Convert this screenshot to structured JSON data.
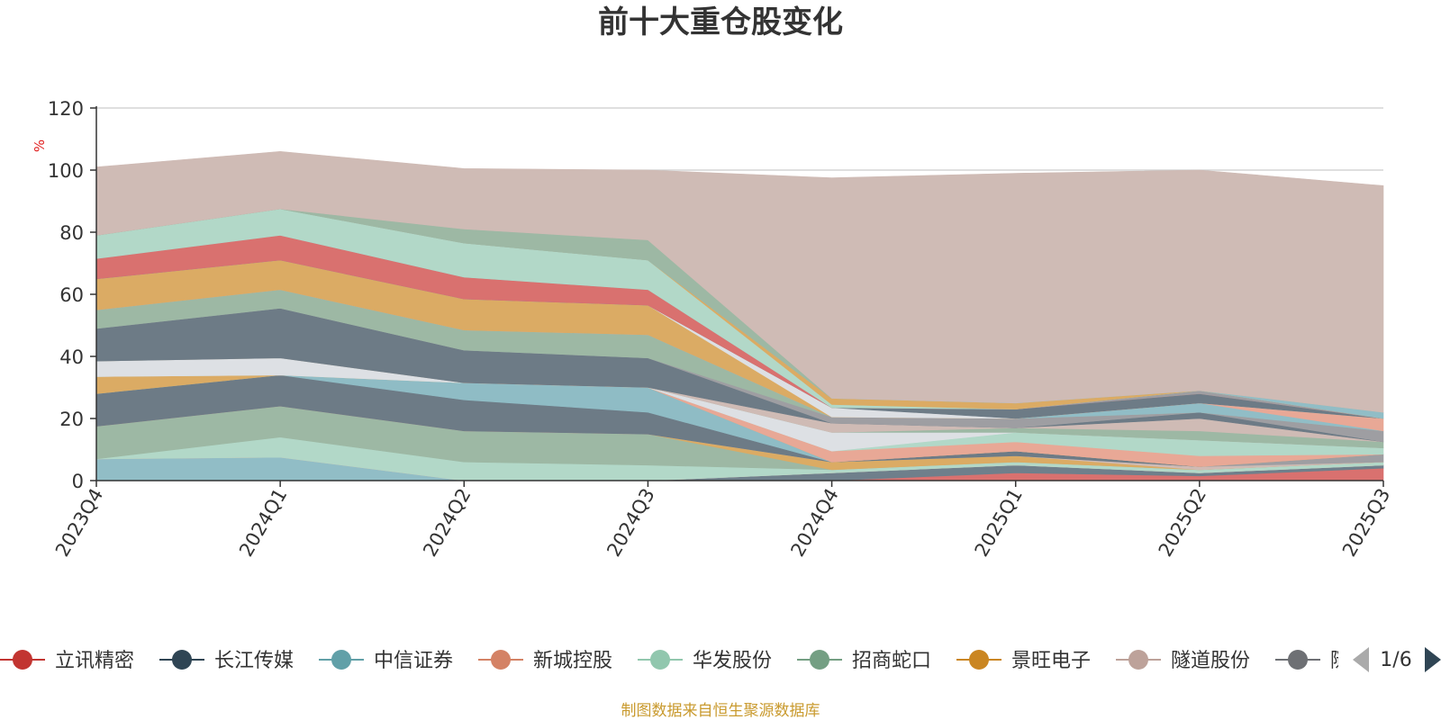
{
  "chart_data": {
    "type": "area",
    "stacked": true,
    "title": "前十大重仓股变化",
    "unit_label": "%",
    "categories": [
      "2023Q4",
      "2024Q1",
      "2024Q2",
      "2024Q3",
      "2024Q4",
      "2025Q1",
      "2025Q2",
      "2025Q3"
    ],
    "ylim": [
      0,
      120
    ],
    "yticks": [
      0,
      20,
      40,
      60,
      80,
      100,
      120
    ],
    "grid": true,
    "series": [
      {
        "name": "立讯精密",
        "color": "#d9716f",
        "values": [
          0,
          0,
          0,
          0,
          0,
          2.5,
          1.5,
          4
        ]
      },
      {
        "name": "长江传媒",
        "color": "#6f7f8b",
        "values": [
          0,
          0,
          0,
          0,
          2.5,
          2.5,
          1,
          1
        ]
      },
      {
        "name": "中信证券",
        "color": "#91bdc6",
        "values": [
          7,
          7.5,
          0,
          0,
          0,
          0,
          0,
          0
        ]
      },
      {
        "name": "新城控股",
        "color": "#e8a896",
        "values": [
          0,
          0,
          0,
          0,
          0,
          0,
          0,
          0
        ]
      },
      {
        "name": "华发股份",
        "color": "#b2d8c8",
        "values": [
          0,
          6.5,
          6,
          5,
          1,
          1,
          1,
          1
        ]
      },
      {
        "name": "招商蛇口",
        "color": "#9db8a4",
        "values": [
          10.5,
          10,
          10,
          10,
          0,
          0,
          0,
          0
        ]
      },
      {
        "name": "景旺电子",
        "color": "#dbab64",
        "values": [
          0,
          0,
          0,
          0,
          2.5,
          2,
          0,
          0
        ]
      },
      {
        "name": "隧道股份",
        "color": "#cfbbb5",
        "values": [
          0,
          0,
          0,
          0,
          0,
          0,
          1,
          0
        ]
      },
      {
        "name": "",
        "color": "#9e9ea2",
        "values": [
          0,
          0,
          0,
          0,
          0,
          0,
          0,
          2.5
        ]
      },
      {
        "name": "",
        "color": "#6d7b86",
        "values": [
          10.5,
          10,
          10,
          7,
          0,
          1.5,
          0,
          0
        ]
      },
      {
        "name": "",
        "color": "#8fbcc5",
        "values": [
          0,
          0,
          5.5,
          8,
          0,
          0,
          0,
          0
        ]
      },
      {
        "name": "",
        "color": "#dbab64",
        "values": [
          5.5,
          0,
          0,
          0,
          0,
          0,
          0,
          0
        ]
      },
      {
        "name": "",
        "color": "#e8a896",
        "values": [
          0,
          0,
          0,
          0,
          3.5,
          3,
          3.5,
          0
        ]
      },
      {
        "name": "",
        "color": "#b2d8c8",
        "values": [
          0,
          0,
          0,
          0,
          0,
          3,
          5,
          2
        ]
      },
      {
        "name": "",
        "color": "#dde0e4",
        "values": [
          5,
          5.5,
          0,
          0,
          6,
          0,
          0,
          0
        ]
      },
      {
        "name": "",
        "color": "#9db8a4",
        "values": [
          0,
          0,
          0,
          0,
          0,
          1.5,
          3,
          2
        ]
      },
      {
        "name": "",
        "color": "#cfbbb5",
        "values": [
          0,
          0,
          0,
          0,
          3,
          0,
          4,
          0
        ]
      },
      {
        "name": "",
        "color": "#6d7b86",
        "values": [
          10.5,
          16,
          10.5,
          9.5,
          0,
          0,
          2,
          0
        ]
      },
      {
        "name": "",
        "color": "#9e9ea2",
        "values": [
          0,
          0,
          0,
          0,
          2,
          3,
          0,
          3.5
        ]
      },
      {
        "name": "",
        "color": "#9db8a4",
        "values": [
          6,
          6,
          6.5,
          7.5,
          0,
          0,
          0,
          0
        ]
      },
      {
        "name": "",
        "color": "#91bdc6",
        "values": [
          0,
          0,
          0,
          0,
          0,
          0,
          3,
          0
        ]
      },
      {
        "name": "",
        "color": "#e8a896",
        "values": [
          0,
          0,
          0,
          0,
          0,
          0,
          0,
          4
        ]
      },
      {
        "name": "",
        "color": "#dbab64",
        "values": [
          10,
          9.5,
          10,
          9.5,
          0,
          0,
          0,
          0
        ]
      },
      {
        "name": "",
        "color": "#dde0e4",
        "values": [
          0,
          0,
          0,
          0,
          3,
          0,
          0,
          0
        ]
      },
      {
        "name": "",
        "color": "#6d7b86",
        "values": [
          0,
          0,
          0,
          0,
          0,
          3,
          3,
          0
        ]
      },
      {
        "name": "",
        "color": "#d9716f",
        "values": [
          6.5,
          8,
          7,
          5,
          0,
          0,
          0,
          0
        ]
      },
      {
        "name": "",
        "color": "#9e9ea2",
        "values": [
          0,
          0,
          0,
          0,
          0,
          0,
          1,
          0
        ]
      },
      {
        "name": "",
        "color": "#b2d8c8",
        "values": [
          7.5,
          8.5,
          11,
          9.5,
          1,
          0,
          0,
          0
        ]
      },
      {
        "name": "",
        "color": "#dbab64",
        "values": [
          0,
          0,
          0,
          0,
          2,
          2,
          0,
          0
        ]
      },
      {
        "name": "",
        "color": "#91bdc6",
        "values": [
          0,
          0,
          0,
          0,
          0,
          0,
          0,
          2
        ]
      },
      {
        "name": "",
        "color": "#9db8a4",
        "values": [
          0,
          0,
          4.5,
          6.5,
          0,
          0,
          0,
          0
        ]
      },
      {
        "name": "",
        "color": "#cfbbb5",
        "values": [
          22,
          18.5,
          19.5,
          22.5,
          71,
          74,
          71,
          73
        ]
      }
    ]
  },
  "legend": {
    "items": [
      {
        "label": "立讯精密",
        "color": "#c23531"
      },
      {
        "label": "长江传媒",
        "color": "#2f4554"
      },
      {
        "label": "中信证券",
        "color": "#61a0a8"
      },
      {
        "label": "新城控股",
        "color": "#d48265"
      },
      {
        "label": "华发股份",
        "color": "#91c7ae"
      },
      {
        "label": "招商蛇口",
        "color": "#749f83"
      },
      {
        "label": "景旺电子",
        "color": "#ca8622"
      },
      {
        "label": "隧道股份",
        "color": "#bda29a"
      },
      {
        "label": "隧",
        "color": "#6e7074"
      }
    ],
    "page": "1/6"
  },
  "footer": {
    "source": "制图数据来自恒生聚源数据库"
  }
}
